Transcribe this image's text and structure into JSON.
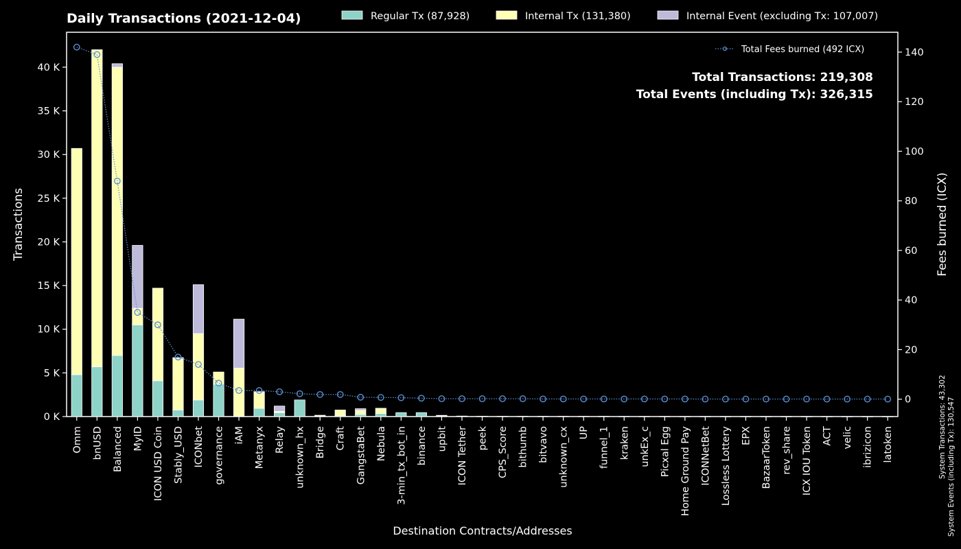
{
  "chart_data": {
    "type": "bar",
    "stacked": true,
    "title": "Daily Transactions (2021-12-04)",
    "xlabel": "Destination Contracts/Addresses",
    "ylabel": "Transactions",
    "y2label": "Fees burned (ICX)",
    "ylim": [
      0,
      44000
    ],
    "y2lim": [
      -7,
      148
    ],
    "yticks": [
      0,
      5000,
      10000,
      15000,
      20000,
      25000,
      30000,
      35000,
      40000
    ],
    "ytick_labels": [
      "0 K",
      "5 K",
      "10 K",
      "15 K",
      "20 K",
      "25 K",
      "30 K",
      "35 K",
      "40 K"
    ],
    "y2ticks": [
      0,
      20,
      40,
      60,
      80,
      100,
      120,
      140
    ],
    "y2tick_labels": [
      "0",
      "20",
      "40",
      "60",
      "80",
      "100",
      "120",
      "140"
    ],
    "grid": false,
    "legend_position": "top",
    "categories": [
      "Omm",
      "bnUSD",
      "Balanced",
      "MyID",
      "ICON USD Coin",
      "Stably_USD",
      "ICONbet",
      "governance",
      "iAM",
      "Metanyx",
      "Relay",
      "unknown_hx",
      "Bridge",
      "Craft",
      "GangstaBet",
      "Nebula",
      "3-min_tx_bot_in",
      "binance",
      "upbit",
      "ICON Tether",
      "peek",
      "CPS_Score",
      "bithumb",
      "bitvavo",
      "unknown_cx",
      "UP",
      "funnel_1",
      "kraken",
      "unkEx_c",
      "Picxal Egg",
      "Home Ground Pay",
      "ICONNetBet",
      "Lossless Lottery",
      "EPX",
      "BazaarToken",
      "rev_share",
      "ICX IOU Token",
      "ACT",
      "velic",
      "ibrizicon",
      "latoken"
    ],
    "series": [
      {
        "name": "Regular Tx (87,928)",
        "color": "#8dd3c7",
        "values": [
          4800,
          5700,
          7000,
          10500,
          4100,
          750,
          1900,
          3700,
          50,
          950,
          450,
          1900,
          50,
          100,
          250,
          350,
          450,
          450,
          80,
          60,
          40,
          30,
          30,
          30,
          30,
          30,
          30,
          20,
          20,
          20,
          15,
          15,
          15,
          15,
          15,
          15,
          15,
          15,
          10,
          10,
          10
        ]
      },
      {
        "name": "Internal Tx (131,380)",
        "color": "#ffffb3",
        "values": [
          25900,
          36300,
          33000,
          1900,
          10600,
          5900,
          7600,
          1400,
          5500,
          1850,
          150,
          0,
          100,
          650,
          450,
          600,
          0,
          0,
          60,
          0,
          0,
          0,
          0,
          0,
          0,
          0,
          0,
          0,
          0,
          0,
          0,
          0,
          0,
          0,
          0,
          0,
          0,
          0,
          0,
          0,
          0
        ]
      },
      {
        "name": "Internal Event (excluding Tx: 107,007)",
        "color": "#bebada",
        "values": [
          0,
          0,
          400,
          7200,
          0,
          100,
          5600,
          0,
          5600,
          50,
          600,
          0,
          0,
          0,
          200,
          0,
          0,
          0,
          0,
          0,
          0,
          0,
          0,
          0,
          0,
          0,
          0,
          0,
          0,
          0,
          0,
          0,
          0,
          0,
          0,
          0,
          0,
          0,
          0,
          0,
          0
        ]
      }
    ],
    "fees_line": {
      "name": "Total Fees burned (492 ICX)",
      "color": "#5a8fd0",
      "values": [
        142,
        139,
        88,
        35,
        30,
        17,
        14,
        6.5,
        3.5,
        3.5,
        3,
        2.2,
        1.9,
        1.9,
        0.8,
        0.7,
        0.6,
        0.4,
        0.2,
        0.2,
        0.2,
        0.2,
        0.2,
        0.1,
        0.1,
        0.1,
        0.1,
        0.1,
        0.1,
        0.1,
        0.1,
        0.05,
        0.05,
        0.05,
        0.05,
        0.05,
        0.05,
        0.05,
        0.05,
        0.05,
        0.05
      ]
    },
    "annotations": {
      "total_tx": "Total Transactions: 219,308",
      "total_events": "Total Events (including Tx): 326,315",
      "system_tx": "System Transactions: 43,302",
      "system_events": "System Events (including Tx): 130,547"
    }
  }
}
